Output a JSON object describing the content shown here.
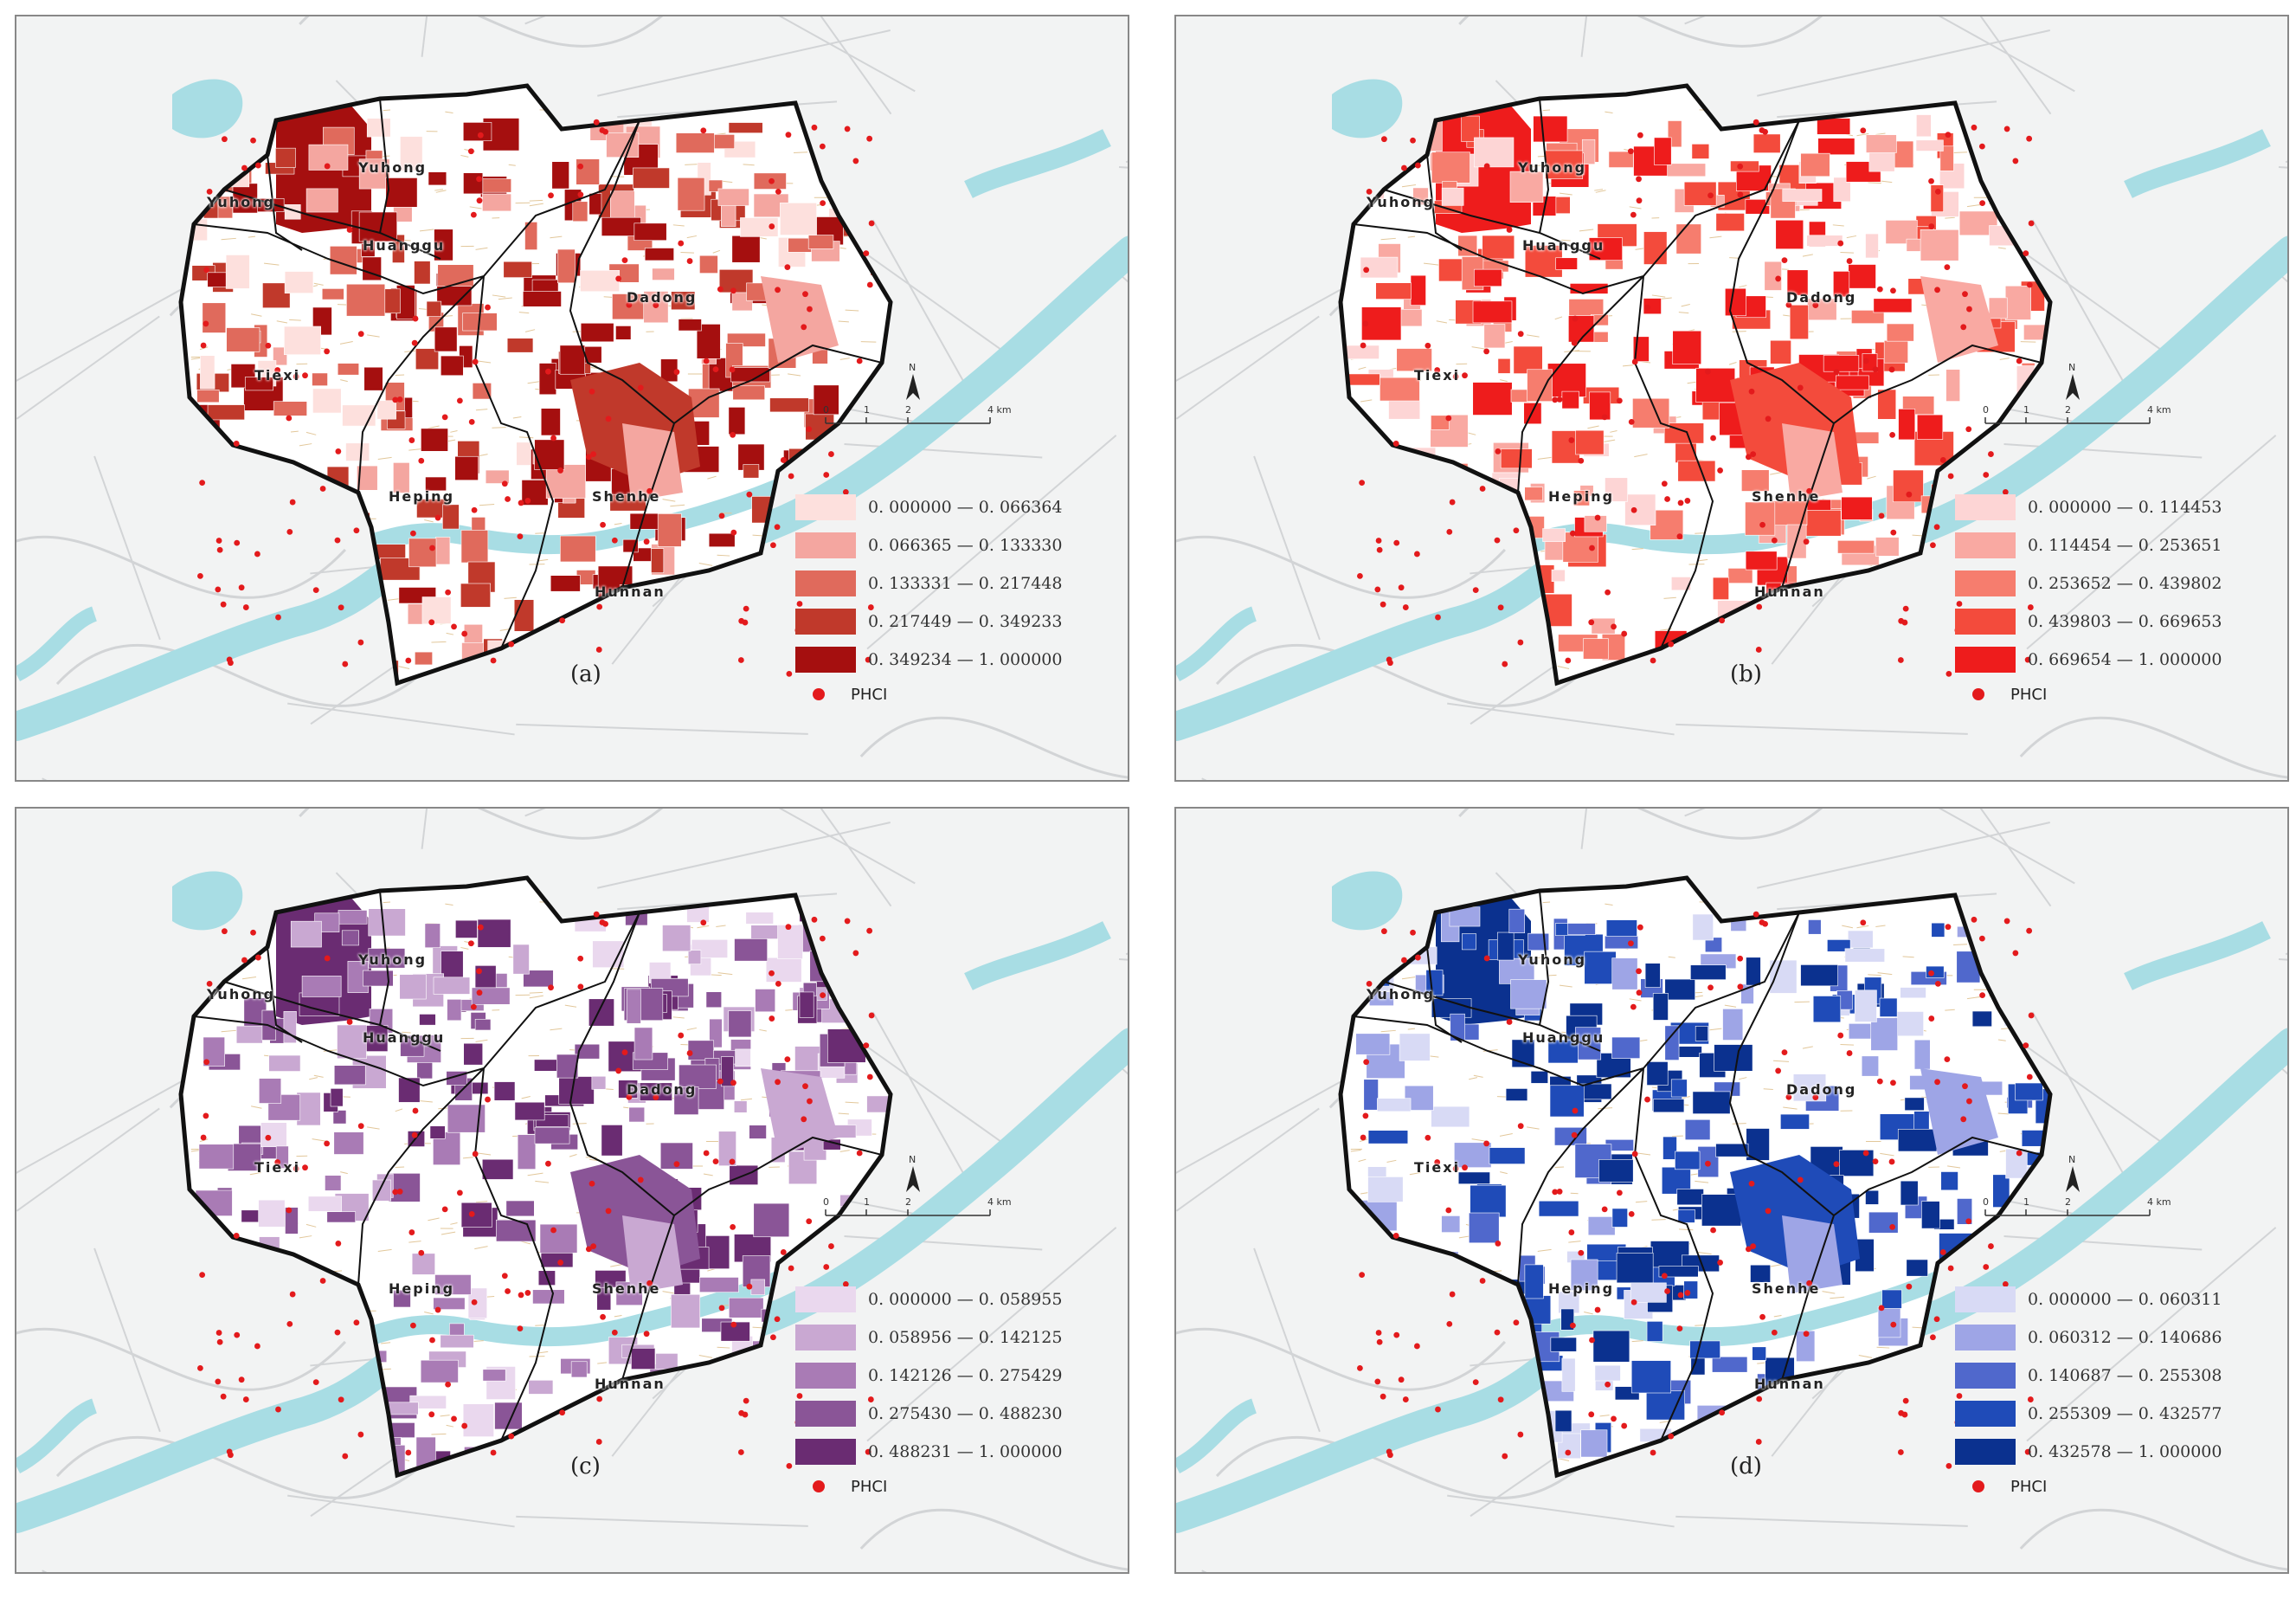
{
  "districts": [
    "Yuhong",
    "Yuhong",
    "Huanggu",
    "Dadong",
    "Tiexi",
    "Heping",
    "Shenhe",
    "Hunnan"
  ],
  "scale": {
    "ticks": [
      "0",
      "1",
      "2",
      "4 km"
    ],
    "north": "N"
  },
  "point_legend": "PHCI",
  "panels": [
    {
      "caption": "(a)",
      "colors": [
        "#fde0dd",
        "#f4a6a0",
        "#e06a5c",
        "#c0392b",
        "#a50f0f"
      ],
      "legend": [
        "0. 000000 — 0. 066364",
        "0. 066365 — 0. 133330",
        "0. 133331 — 0. 217448",
        "0. 217449 — 0. 349233",
        "0. 349234 — 1. 000000"
      ]
    },
    {
      "caption": "(b)",
      "colors": [
        "#fdd5d5",
        "#f9a9a2",
        "#f67d6e",
        "#f34b3c",
        "#ee1c1c"
      ],
      "legend": [
        "0. 000000 — 0. 114453",
        "0. 114454 — 0. 253651",
        "0. 253652 — 0. 439802",
        "0. 439803 — 0. 669653",
        "0. 669654 — 1. 000000"
      ]
    },
    {
      "caption": "(c)",
      "colors": [
        "#ead8ee",
        "#c9a8d2",
        "#a97bb5",
        "#8a5597",
        "#6a2c72"
      ],
      "legend": [
        "0. 000000 — 0. 058955",
        "0. 058956 — 0. 142125",
        "0. 142126 — 0. 275429",
        "0. 275430 — 0. 488230",
        "0. 488231 — 1. 000000"
      ]
    },
    {
      "caption": "(d)",
      "colors": [
        "#d8daf5",
        "#9ea5e6",
        "#5068cc",
        "#1f4bb8",
        "#0b318f"
      ],
      "legend": [
        "0. 000000 — 0. 060311",
        "0. 060312 — 0. 140686",
        "0. 140687 — 0. 255308",
        "0. 255309 — 0. 432577",
        "0. 432578 — 1. 000000"
      ]
    }
  ]
}
